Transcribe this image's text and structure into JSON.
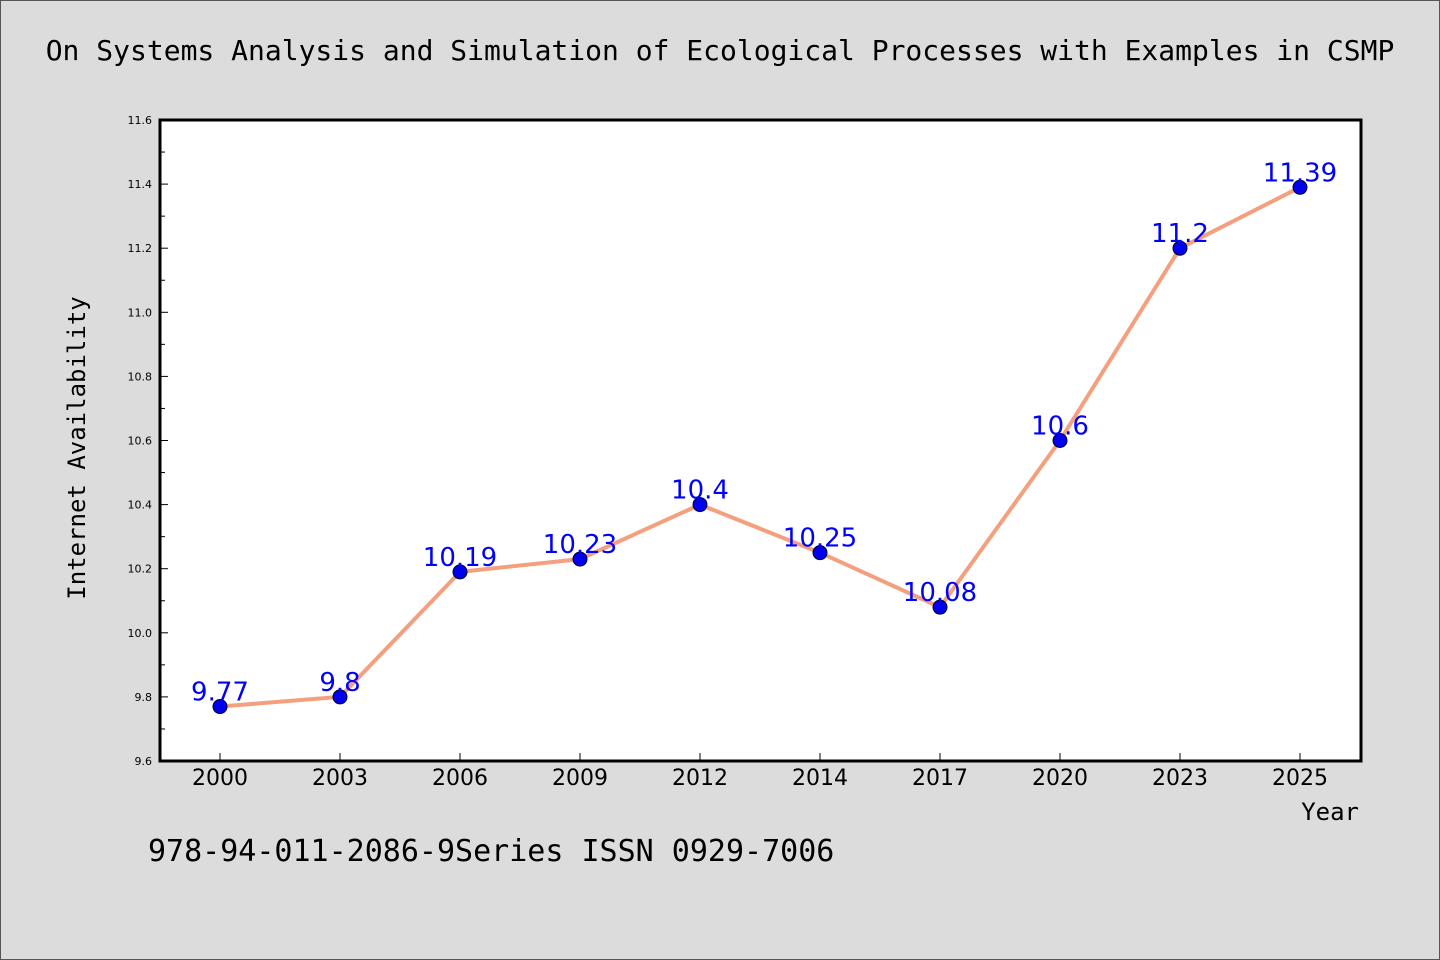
{
  "chart_data": {
    "type": "line",
    "title": "On Systems Analysis and Simulation of Ecological Processes with Examples in CSMP",
    "xlabel": "Year",
    "ylabel": "Internet Availability",
    "categories": [
      "2000",
      "2003",
      "2006",
      "2009",
      "2012",
      "2014",
      "2017",
      "2020",
      "2023",
      "2025"
    ],
    "series": [
      {
        "values": [
          9.77,
          9.8,
          10.19,
          10.23,
          10.4,
          10.25,
          10.08,
          10.6,
          11.2,
          11.39
        ],
        "labels": [
          "9.77",
          "9.8",
          "10.19",
          "10.23",
          "10.4",
          "10.25",
          "10.08",
          "10.6",
          "11.2",
          "11.39"
        ],
        "line_color": "#f4a07e",
        "marker_color": "#0000ee",
        "label_color": "#0000ff"
      }
    ],
    "ylim": [
      9.6,
      11.6
    ],
    "yticks": [
      "9.6",
      "9.8",
      "10.0",
      "10.2",
      "10.4",
      "10.6",
      "10.8",
      "11.0",
      "11.2",
      "11.4",
      "11.6"
    ],
    "grid": false,
    "background": "#ffffff"
  },
  "footer": {
    "text": "978-94-011-2086-9Series ISSN 0929-7006"
  }
}
